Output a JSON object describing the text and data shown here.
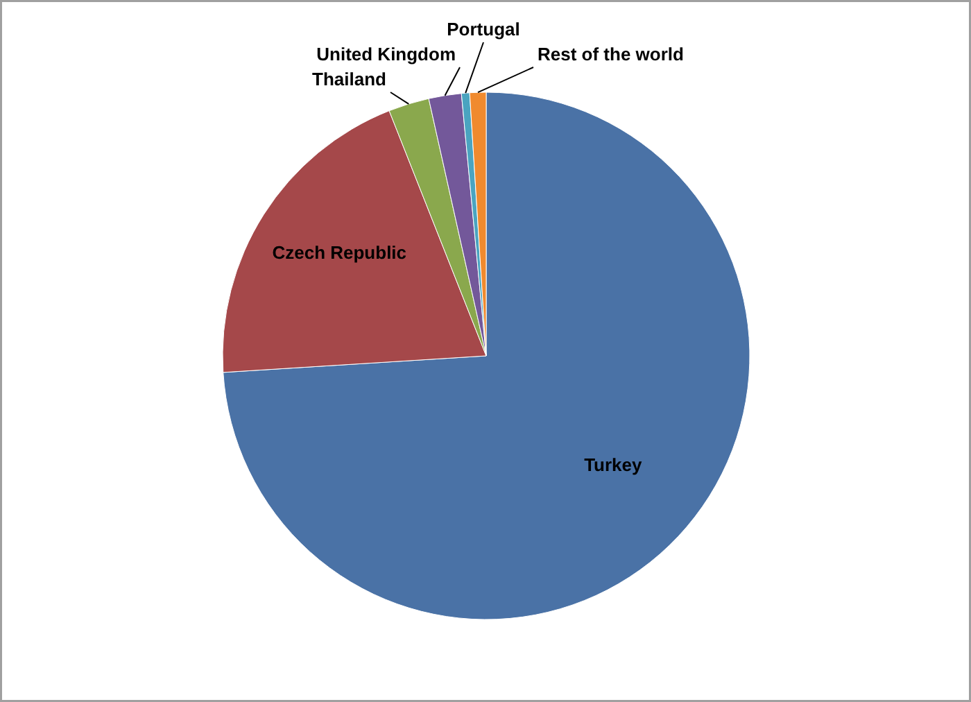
{
  "chart_data": {
    "type": "pie",
    "categories": [
      "Turkey",
      "Czech Republic",
      "Thailand",
      "United Kingdom",
      "Portugal",
      "Rest of the world"
    ],
    "values": [
      74,
      20,
      2.5,
      2,
      0.5,
      1
    ],
    "colors": [
      "#4a72a6",
      "#a5484a",
      "#8aa84d",
      "#73589a",
      "#4aa4c0",
      "#f08a2e"
    ],
    "legend": false
  }
}
